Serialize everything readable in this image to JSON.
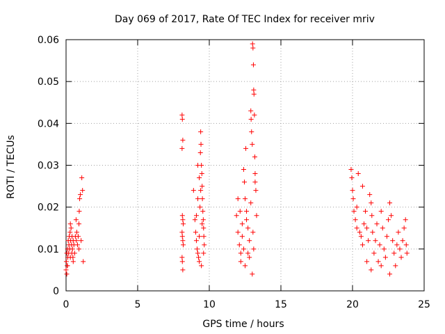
{
  "chart_data": {
    "type": "scatter",
    "title": "Day 069 of 2017, Rate Of TEC Index for receiver mriv",
    "xlabel": "GPS time / hours",
    "ylabel": "ROTI / TECUs",
    "xlim": [
      0,
      25
    ],
    "ylim": [
      0,
      0.06
    ],
    "xticks": [
      0,
      5,
      10,
      15,
      20,
      25
    ],
    "xtick_labels": [
      "0",
      "5",
      "10",
      "15",
      "20",
      "25"
    ],
    "yticks": [
      0,
      0.01,
      0.02,
      0.03,
      0.04,
      0.05,
      0.06
    ],
    "ytick_labels": [
      "0",
      "0.01",
      "0.02",
      "0.03",
      "0.04",
      "0.05",
      "0.06"
    ],
    "grid": true,
    "marker": "+",
    "color": "#ff0000",
    "series": [
      {
        "name": "mriv",
        "points": [
          [
            0.0,
            0.005
          ],
          [
            0.02,
            0.007
          ],
          [
            0.05,
            0.009
          ],
          [
            0.08,
            0.006
          ],
          [
            0.1,
            0.01
          ],
          [
            0.12,
            0.008
          ],
          [
            0.15,
            0.012
          ],
          [
            0.18,
            0.009
          ],
          [
            0.2,
            0.011
          ],
          [
            0.22,
            0.013
          ],
          [
            0.25,
            0.01
          ],
          [
            0.28,
            0.014
          ],
          [
            0.3,
            0.016
          ],
          [
            0.32,
            0.012
          ],
          [
            0.35,
            0.015
          ],
          [
            0.38,
            0.011
          ],
          [
            0.4,
            0.009
          ],
          [
            0.42,
            0.013
          ],
          [
            0.45,
            0.01
          ],
          [
            0.48,
            0.008
          ],
          [
            0.5,
            0.012
          ],
          [
            0.55,
            0.011
          ],
          [
            0.6,
            0.009
          ],
          [
            0.65,
            0.013
          ],
          [
            0.7,
            0.017
          ],
          [
            0.72,
            0.012
          ],
          [
            0.75,
            0.014
          ],
          [
            0.8,
            0.011
          ],
          [
            0.85,
            0.013
          ],
          [
            0.9,
            0.016
          ],
          [
            0.92,
            0.019
          ],
          [
            0.95,
            0.022
          ],
          [
            1.0,
            0.023
          ],
          [
            1.05,
            0.012
          ],
          [
            1.1,
            0.027
          ],
          [
            1.15,
            0.024
          ],
          [
            1.2,
            0.007
          ],
          [
            0.05,
            0.004
          ],
          [
            0.1,
            0.006
          ],
          [
            0.3,
            0.008
          ],
          [
            0.5,
            0.007
          ],
          [
            0.9,
            0.01
          ],
          [
            8.1,
            0.042
          ],
          [
            8.12,
            0.041
          ],
          [
            8.15,
            0.036
          ],
          [
            8.1,
            0.034
          ],
          [
            8.12,
            0.018
          ],
          [
            8.15,
            0.017
          ],
          [
            8.18,
            0.016
          ],
          [
            8.1,
            0.014
          ],
          [
            8.12,
            0.013
          ],
          [
            8.15,
            0.012
          ],
          [
            8.18,
            0.011
          ],
          [
            8.1,
            0.008
          ],
          [
            8.12,
            0.007
          ],
          [
            8.15,
            0.005
          ],
          [
            8.9,
            0.024
          ],
          [
            9.0,
            0.017
          ],
          [
            9.05,
            0.014
          ],
          [
            9.1,
            0.012
          ],
          [
            9.15,
            0.01
          ],
          [
            9.2,
            0.009
          ],
          [
            9.25,
            0.008
          ],
          [
            9.3,
            0.013
          ],
          [
            9.35,
            0.02
          ],
          [
            9.38,
            0.033
          ],
          [
            9.4,
            0.038
          ],
          [
            9.42,
            0.035
          ],
          [
            9.45,
            0.03
          ],
          [
            9.48,
            0.028
          ],
          [
            9.5,
            0.025
          ],
          [
            9.52,
            0.022
          ],
          [
            9.55,
            0.019
          ],
          [
            9.58,
            0.017
          ],
          [
            9.6,
            0.015
          ],
          [
            9.62,
            0.013
          ],
          [
            9.65,
            0.011
          ],
          [
            9.2,
            0.022
          ],
          [
            9.3,
            0.027
          ],
          [
            9.4,
            0.024
          ],
          [
            9.5,
            0.016
          ],
          [
            9.45,
            0.006
          ],
          [
            9.3,
            0.007
          ],
          [
            9.1,
            0.018
          ],
          [
            9.6,
            0.009
          ],
          [
            9.2,
            0.03
          ],
          [
            11.9,
            0.018
          ],
          [
            12.0,
            0.014
          ],
          [
            12.1,
            0.011
          ],
          [
            12.2,
            0.009
          ],
          [
            12.3,
            0.016
          ],
          [
            12.4,
            0.029
          ],
          [
            12.45,
            0.026
          ],
          [
            12.5,
            0.022
          ],
          [
            12.55,
            0.034
          ],
          [
            12.6,
            0.019
          ],
          [
            12.7,
            0.015
          ],
          [
            12.8,
            0.012
          ],
          [
            12.9,
            0.043
          ],
          [
            12.92,
            0.041
          ],
          [
            12.95,
            0.038
          ],
          [
            13.0,
            0.035
          ],
          [
            13.02,
            0.059
          ],
          [
            13.05,
            0.058
          ],
          [
            13.08,
            0.054
          ],
          [
            13.1,
            0.048
          ],
          [
            13.12,
            0.047
          ],
          [
            13.15,
            0.042
          ],
          [
            13.18,
            0.032
          ],
          [
            13.2,
            0.028
          ],
          [
            13.25,
            0.024
          ],
          [
            13.3,
            0.018
          ],
          [
            13.0,
            0.004
          ],
          [
            12.5,
            0.006
          ],
          [
            12.2,
            0.007
          ],
          [
            12.8,
            0.008
          ],
          [
            13.1,
            0.01
          ],
          [
            12.0,
            0.022
          ],
          [
            12.3,
            0.013
          ],
          [
            12.6,
            0.017
          ],
          [
            12.9,
            0.021
          ],
          [
            13.2,
            0.026
          ],
          [
            12.4,
            0.01
          ],
          [
            12.7,
            0.009
          ],
          [
            13.05,
            0.014
          ],
          [
            12.15,
            0.019
          ],
          [
            19.9,
            0.029
          ],
          [
            19.95,
            0.027
          ],
          [
            20.0,
            0.024
          ],
          [
            20.05,
            0.022
          ],
          [
            20.1,
            0.019
          ],
          [
            20.2,
            0.017
          ],
          [
            20.3,
            0.015
          ],
          [
            20.4,
            0.028
          ],
          [
            20.5,
            0.014
          ],
          [
            20.6,
            0.013
          ],
          [
            20.7,
            0.011
          ],
          [
            20.8,
            0.016
          ],
          [
            20.9,
            0.019
          ],
          [
            21.0,
            0.015
          ],
          [
            21.1,
            0.012
          ],
          [
            21.2,
            0.023
          ],
          [
            21.3,
            0.021
          ],
          [
            21.35,
            0.018
          ],
          [
            21.4,
            0.014
          ],
          [
            21.5,
            0.009
          ],
          [
            21.6,
            0.012
          ],
          [
            21.7,
            0.016
          ],
          [
            21.8,
            0.007
          ],
          [
            21.9,
            0.011
          ],
          [
            22.0,
            0.019
          ],
          [
            22.1,
            0.015
          ],
          [
            22.2,
            0.01
          ],
          [
            22.3,
            0.008
          ],
          [
            22.4,
            0.013
          ],
          [
            22.5,
            0.017
          ],
          [
            22.6,
            0.021
          ],
          [
            22.7,
            0.018
          ],
          [
            22.8,
            0.012
          ],
          [
            22.9,
            0.009
          ],
          [
            23.0,
            0.006
          ],
          [
            23.1,
            0.011
          ],
          [
            23.2,
            0.014
          ],
          [
            23.3,
            0.01
          ],
          [
            23.4,
            0.008
          ],
          [
            23.5,
            0.012
          ],
          [
            23.6,
            0.015
          ],
          [
            23.7,
            0.017
          ],
          [
            23.75,
            0.011
          ],
          [
            23.8,
            0.009
          ],
          [
            21.3,
            0.005
          ],
          [
            22.6,
            0.004
          ],
          [
            21.0,
            0.007
          ],
          [
            22.0,
            0.006
          ],
          [
            20.3,
            0.02
          ],
          [
            20.7,
            0.025
          ]
        ]
      }
    ]
  }
}
